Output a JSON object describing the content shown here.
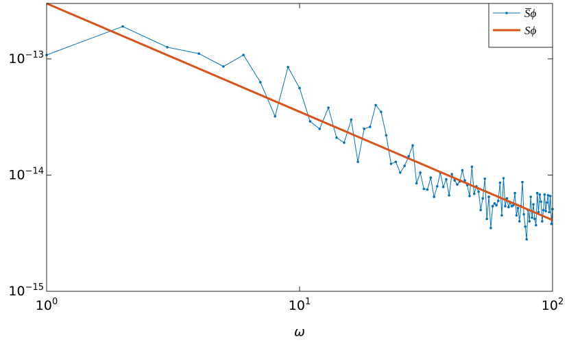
{
  "chart_data": {
    "type": "line",
    "x_label": "ω",
    "xlim": [
      1,
      100
    ],
    "ylim": [
      1e-15,
      3e-13
    ],
    "xlog": true,
    "ylog": true,
    "xticks": [
      {
        "value": 1,
        "label": "100"
      },
      {
        "value": 10,
        "label": "101"
      },
      {
        "value": 100,
        "label": "102"
      }
    ],
    "yticks": [
      {
        "value": 1e-15,
        "label": "10−15"
      },
      {
        "value": 1e-14,
        "label": "10−14"
      },
      {
        "value": 1e-13,
        "label": "10−13"
      }
    ],
    "legend": "top-right",
    "series": [
      {
        "name": "S̅ϕ",
        "color": "#0072bd",
        "markers": true,
        "x": [
          1,
          2,
          3,
          4,
          5,
          6,
          7,
          8,
          9,
          10,
          11,
          12,
          13,
          14,
          15,
          16,
          17,
          18,
          19,
          20,
          21,
          22,
          23,
          24,
          25,
          26,
          27,
          28,
          29,
          30,
          31,
          32,
          33,
          34,
          35,
          36,
          37,
          38,
          39,
          40,
          41,
          42,
          43,
          44,
          45,
          46,
          47,
          48,
          49,
          50,
          51,
          52,
          53,
          54,
          55,
          56,
          57,
          58,
          59,
          60,
          61,
          62,
          63,
          64,
          65,
          66,
          67,
          68,
          69,
          70,
          71,
          72,
          73,
          74,
          75,
          76,
          77,
          78,
          79,
          80,
          81,
          82,
          83,
          84,
          85,
          86,
          87,
          88,
          89,
          90,
          91,
          92,
          93,
          94,
          95,
          96,
          97,
          98,
          99,
          100
        ],
        "values": [
          1.08e-13,
          1.9e-13,
          1.26e-13,
          1.11e-13,
          8.6e-14,
          1.08e-13,
          6.3e-14,
          3.2e-14,
          8.5e-14,
          5.6e-14,
          2.9e-14,
          2.5e-14,
          3.8e-14,
          2.1e-14,
          1.9e-14,
          3e-14,
          1.3e-14,
          2.5e-14,
          2.6e-14,
          4e-14,
          3.5e-14,
          2.2e-14,
          1.25e-14,
          1.3e-14,
          1.05e-14,
          1.2e-14,
          1.45e-14,
          1.8e-14,
          8.5e-15,
          1.05e-14,
          7.6e-15,
          7.5e-15,
          9.5e-15,
          6.5e-15,
          8e-15,
          1.05e-14,
          7.9e-15,
          9.2e-15,
          6.7e-15,
          1.02e-14,
          9e-15,
          8.3e-15,
          8.8e-15,
          1.1e-14,
          9e-15,
          8.2e-15,
          6.6e-15,
          1.18e-14,
          6.9e-15,
          8e-15,
          7.2e-15,
          5e-15,
          6.3e-15,
          9.3e-15,
          4.2e-15,
          6.5e-15,
          3.5e-15,
          5.4e-15,
          5.7e-15,
          5.5e-15,
          6e-15,
          8.6e-15,
          4.5e-15,
          9.4e-15,
          5.4e-15,
          6.3e-15,
          5.3e-15,
          5.8e-15,
          5.4e-15,
          5.5e-15,
          7e-15,
          4.5e-15,
          5.2e-15,
          4e-15,
          5.4e-15,
          8.7e-15,
          4.6e-15,
          3.6e-15,
          2.8e-15,
          5e-15,
          4e-15,
          6.5e-15,
          4.3e-15,
          5.6e-15,
          4.2e-15,
          3.7e-15,
          7e-15,
          4.8e-15,
          6.8e-15,
          5.9e-15,
          4e-15,
          5e-15,
          6.8e-15,
          4.9e-15,
          5.8e-15,
          6.7e-15,
          4.8e-15,
          6.6e-15,
          3.8e-15,
          5.1e-15
        ]
      },
      {
        "name": "Sϕ",
        "color": "#d95319",
        "markers": false,
        "x": [
          1,
          100
        ],
        "values": [
          3e-13,
          4.1e-15
        ]
      }
    ]
  }
}
